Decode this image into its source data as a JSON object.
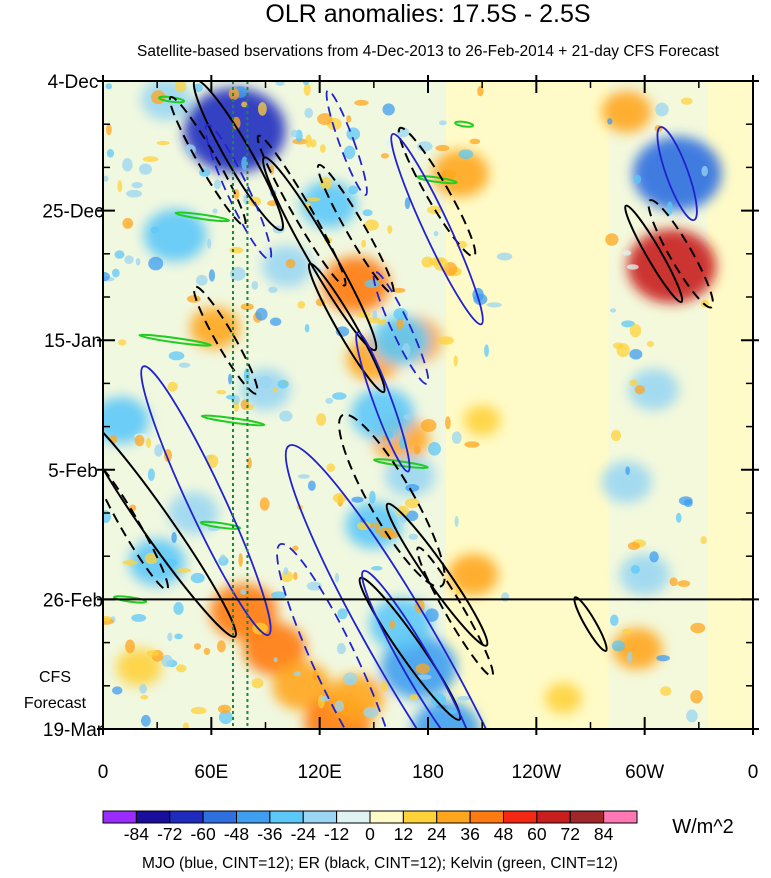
{
  "chart_data": {
    "type": "heatmap",
    "title": "OLR anomalies: 17.5S - 2.5S",
    "subtitle": "Satellite-based bservations from 4-Dec-2013 to 26-Feb-2014 + 21-day CFS Forecast",
    "x_ticks": [
      {
        "lon": 0,
        "label": "0"
      },
      {
        "lon": 60,
        "label": "60E"
      },
      {
        "lon": 120,
        "label": "120E"
      },
      {
        "lon": 180,
        "label": "180"
      },
      {
        "lon": 240,
        "label": "120W"
      },
      {
        "lon": 300,
        "label": "60W"
      },
      {
        "lon": 360,
        "label": "0"
      }
    ],
    "xlim": [
      0,
      360
    ],
    "y_ticks": [
      {
        "day": 0,
        "label": "4-Dec"
      },
      {
        "day": 21,
        "label": "25-Dec"
      },
      {
        "day": 42,
        "label": "15-Jan"
      },
      {
        "day": 63,
        "label": "5-Feb"
      },
      {
        "day": 84,
        "label": "26-Feb"
      },
      {
        "day": 105,
        "label": "19-Mar"
      }
    ],
    "ylim_days": [
      0,
      105
    ],
    "forecast_start_day": 84,
    "forecast_label_line1": "CFS",
    "forecast_label_line2": "Forecast",
    "reference_lon_lines": [
      72,
      80
    ],
    "colorbar": {
      "levels": [
        -84,
        -72,
        -60,
        -48,
        -36,
        -24,
        -12,
        0,
        12,
        24,
        36,
        48,
        60,
        72,
        84
      ],
      "labels": [
        "-84",
        "-72",
        "-60",
        "-48",
        "-36",
        "-24",
        "-12",
        "0",
        "12",
        "24",
        "36",
        "48",
        "60",
        "72",
        "84"
      ],
      "colors": [
        "#9b2cff",
        "#1a0f9c",
        "#1f2bbf",
        "#2f6fe0",
        "#3f9ef0",
        "#5cc8f8",
        "#9ad6f2",
        "#dff4f2",
        "#fffbc8",
        "#ffd23a",
        "#ffa61f",
        "#ff7a12",
        "#f52814",
        "#c81e1e",
        "#a0282b",
        "#ff78b4"
      ],
      "units": "W/m^2"
    },
    "anomaly_blobs": [
      {
        "lon": 78,
        "day": 86,
        "value": 40
      },
      {
        "lon": 95,
        "day": 92,
        "value": 36
      },
      {
        "lon": 110,
        "day": 98,
        "value": 32
      },
      {
        "lon": 130,
        "day": 104,
        "value": 40
      },
      {
        "lon": 140,
        "day": 100,
        "value": 30
      },
      {
        "lon": 165,
        "day": 58,
        "value": 30
      },
      {
        "lon": 150,
        "day": 45,
        "value": 28
      },
      {
        "lon": 140,
        "day": 33,
        "value": 40
      },
      {
        "lon": 198,
        "day": 15,
        "value": 30
      },
      {
        "lon": 172,
        "day": 42,
        "value": 30
      },
      {
        "lon": 62,
        "day": 40,
        "value": 24
      },
      {
        "lon": 175,
        "day": 95,
        "value": -48
      },
      {
        "lon": 190,
        "day": 105,
        "value": -40
      },
      {
        "lon": 165,
        "day": 88,
        "value": -36
      },
      {
        "lon": 150,
        "day": 72,
        "value": -30
      },
      {
        "lon": 170,
        "day": 64,
        "value": -24
      },
      {
        "lon": 155,
        "day": 54,
        "value": -36
      },
      {
        "lon": 165,
        "day": 42,
        "value": -32
      },
      {
        "lon": 125,
        "day": 20,
        "value": -30
      },
      {
        "lon": 90,
        "day": 50,
        "value": -24
      },
      {
        "lon": 73,
        "day": 8,
        "value": -72
      },
      {
        "lon": 40,
        "day": 25,
        "value": -36
      },
      {
        "lon": 10,
        "day": 55,
        "value": -30
      },
      {
        "lon": 30,
        "day": 78,
        "value": -30
      },
      {
        "lon": 50,
        "day": 70,
        "value": -24
      },
      {
        "lon": 102,
        "day": 30,
        "value": -24
      },
      {
        "lon": 318,
        "day": 15,
        "value": -60
      },
      {
        "lon": 315,
        "day": 30,
        "value": 60
      },
      {
        "lon": 290,
        "day": 5,
        "value": 24
      },
      {
        "lon": 305,
        "day": 50,
        "value": -24
      },
      {
        "lon": 290,
        "day": 65,
        "value": -24
      },
      {
        "lon": 300,
        "day": 80,
        "value": -24
      },
      {
        "lon": 296,
        "day": 92,
        "value": 24
      },
      {
        "lon": 255,
        "day": 100,
        "value": 12
      },
      {
        "lon": 205,
        "day": 80,
        "value": 24
      },
      {
        "lon": 210,
        "day": 55,
        "value": 12
      },
      {
        "lon": 20,
        "day": 95,
        "value": 20
      },
      {
        "lon": 35,
        "day": 3,
        "value": -24
      }
    ],
    "mjo_contours": [
      {
        "lon": 185,
        "day": 24,
        "rx": 7,
        "ry": 17,
        "rot": -25,
        "dashed": false
      },
      {
        "lon": 155,
        "day": 52,
        "rx": 5,
        "ry": 12,
        "rot": -20,
        "dashed": false
      },
      {
        "lon": 57,
        "day": 68,
        "rx": 10,
        "ry": 24,
        "rot": -25,
        "dashed": false
      },
      {
        "lon": 168,
        "day": 92,
        "rx": 18,
        "ry": 38,
        "rot": -30,
        "dashed": false
      },
      {
        "lon": 175,
        "day": 95,
        "rx": 8,
        "ry": 18,
        "rot": -30,
        "dashed": false
      },
      {
        "lon": 318,
        "day": 15,
        "rx": 6,
        "ry": 8,
        "rot": -20,
        "dashed": false
      },
      {
        "lon": 165,
        "day": 40,
        "rx": 5,
        "ry": 10,
        "rot": -25,
        "dashed": true
      },
      {
        "lon": 130,
        "day": 95,
        "rx": 12,
        "ry": 22,
        "rot": -25,
        "dashed": true
      },
      {
        "lon": 75,
        "day": 18,
        "rx": 6,
        "ry": 12,
        "rot": -25,
        "dashed": true
      },
      {
        "lon": 135,
        "day": 10,
        "rx": 4,
        "ry": 9,
        "rot": -20,
        "dashed": true
      }
    ],
    "er_contours": [
      {
        "lon": 75,
        "day": 12,
        "rx": 7,
        "ry": 14,
        "rot": -30,
        "dashed": false
      },
      {
        "lon": 120,
        "day": 28,
        "rx": 7,
        "ry": 18,
        "rot": -30,
        "dashed": false
      },
      {
        "lon": 135,
        "day": 40,
        "rx": 5,
        "ry": 12,
        "rot": -30,
        "dashed": false
      },
      {
        "lon": 30,
        "day": 72,
        "rx": 8,
        "ry": 22,
        "rot": -35,
        "dashed": false
      },
      {
        "lon": 185,
        "day": 80,
        "rx": 6,
        "ry": 14,
        "rot": -35,
        "dashed": false
      },
      {
        "lon": 170,
        "day": 92,
        "rx": 6,
        "ry": 14,
        "rot": -35,
        "dashed": false
      },
      {
        "lon": 305,
        "day": 28,
        "rx": 4,
        "ry": 9,
        "rot": -30,
        "dashed": false
      },
      {
        "lon": 270,
        "day": 88,
        "rx": 3,
        "ry": 5,
        "rot": -30,
        "dashed": false
      },
      {
        "lon": 58,
        "day": 13,
        "rx": 5,
        "ry": 12,
        "rot": -30,
        "dashed": true
      },
      {
        "lon": 110,
        "day": 21,
        "rx": 5,
        "ry": 14,
        "rot": -30,
        "dashed": true
      },
      {
        "lon": 140,
        "day": 24,
        "rx": 5,
        "ry": 12,
        "rot": -30,
        "dashed": true
      },
      {
        "lon": 185,
        "day": 18,
        "rx": 6,
        "ry": 12,
        "rot": -30,
        "dashed": true
      },
      {
        "lon": 68,
        "day": 42,
        "rx": 5,
        "ry": 10,
        "rot": -30,
        "dashed": true
      },
      {
        "lon": 160,
        "day": 68,
        "rx": 12,
        "ry": 16,
        "rot": -30,
        "dashed": true
      },
      {
        "lon": 15,
        "day": 72,
        "rx": 5,
        "ry": 12,
        "rot": -30,
        "dashed": true
      },
      {
        "lon": 195,
        "day": 86,
        "rx": 5,
        "ry": 12,
        "rot": -30,
        "dashed": true
      },
      {
        "lon": 320,
        "day": 28,
        "rx": 6,
        "ry": 10,
        "rot": -30,
        "dashed": true
      }
    ],
    "kelvin_contours": [
      {
        "lon": 38,
        "day": 3,
        "len": 14,
        "rot": -8
      },
      {
        "lon": 55,
        "day": 22,
        "len": 30,
        "rot": -8
      },
      {
        "lon": 40,
        "day": 42,
        "len": 40,
        "rot": -8
      },
      {
        "lon": 72,
        "day": 55,
        "len": 35,
        "rot": -8
      },
      {
        "lon": 185,
        "day": 16,
        "len": 22,
        "rot": -8
      },
      {
        "lon": 165,
        "day": 62,
        "len": 30,
        "rot": -8
      },
      {
        "lon": 65,
        "day": 72,
        "len": 22,
        "rot": -8
      },
      {
        "lon": 15,
        "day": 84,
        "len": 18,
        "rot": -8
      },
      {
        "lon": 200,
        "day": 7,
        "len": 10,
        "rot": -8
      }
    ],
    "footer": "MJO (blue, CINT=12); ER (black, CINT=12); Kelvin (green, CINT=12)"
  }
}
